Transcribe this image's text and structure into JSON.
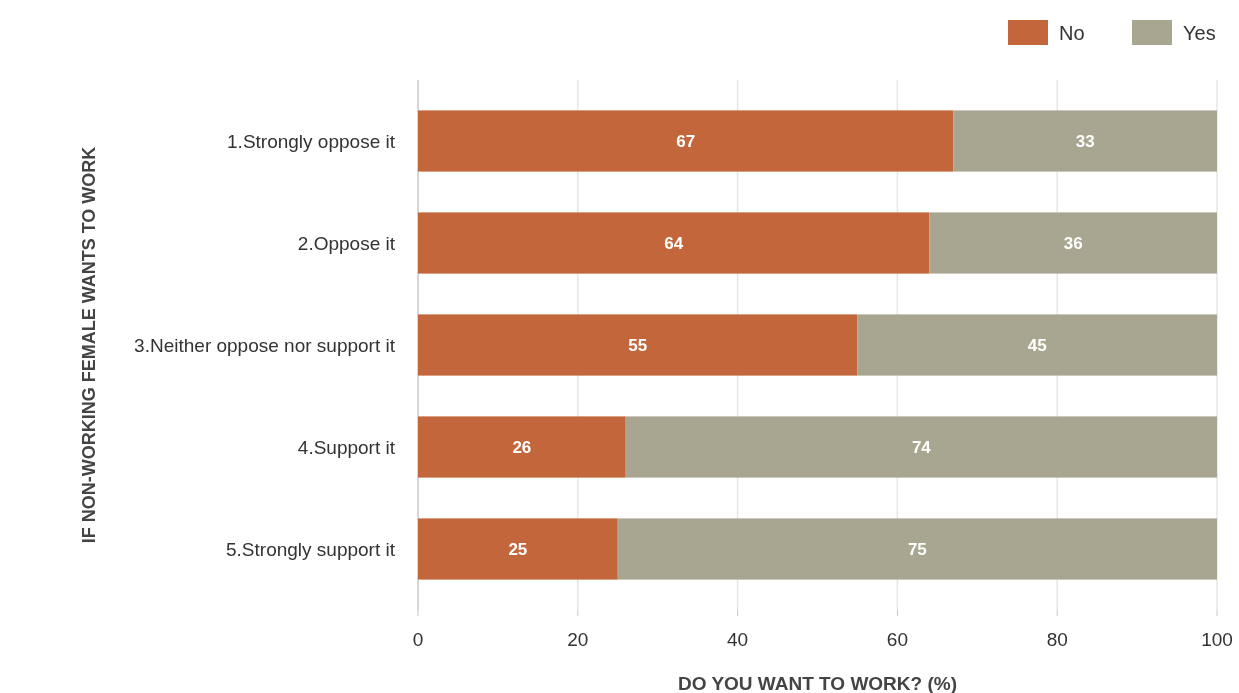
{
  "chart_data": {
    "type": "bar",
    "orientation": "horizontal",
    "stacked": true,
    "xlabel": "DO YOU WANT TO WORK? (%)",
    "ylabel": "IF NON-WORKING FEMALE WANTS TO WORK",
    "categories": [
      "1.Strongly oppose it",
      "2.Oppose it",
      "3.Neither oppose nor support it",
      "4.Support it",
      "5.Strongly support it"
    ],
    "series": [
      {
        "name": "No",
        "color": "#c4663b",
        "values": [
          67,
          64,
          55,
          26,
          25
        ]
      },
      {
        "name": "Yes",
        "color": "#a8a690",
        "values": [
          33,
          36,
          45,
          74,
          75
        ]
      }
    ],
    "xlim": [
      0,
      100
    ],
    "xticks": [
      0,
      20,
      40,
      60,
      80,
      100
    ],
    "grid": "x",
    "legend": "top right",
    "data_labels": true
  }
}
